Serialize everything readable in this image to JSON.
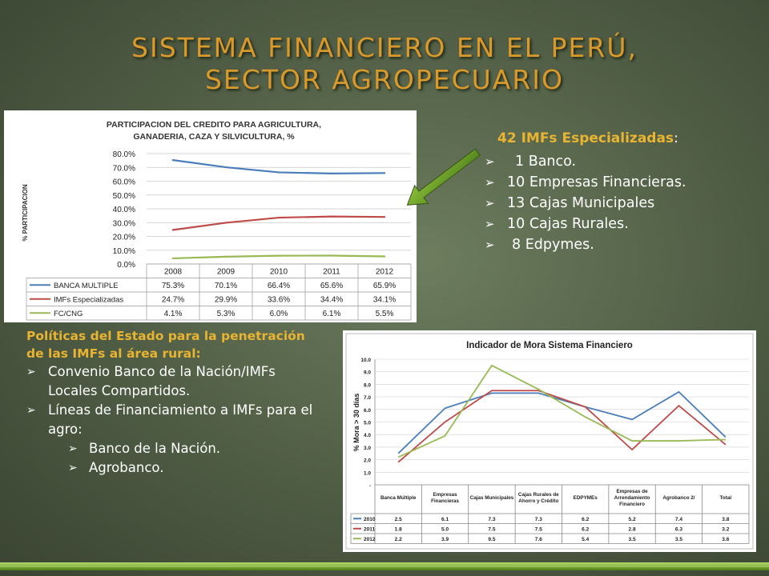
{
  "title": {
    "line1": "SISTEMA FINANCIERO EN EL PERÚ,",
    "line2": "SECTOR AGROPECUARIO"
  },
  "right_box": {
    "heading": "42 IMFs Especializadas",
    "heading_suffix": ":",
    "items": [
      "1 Banco.",
      "10 Empresas Financieras.",
      "13 Cajas Municipales",
      "10 Cajas Rurales.",
      "8 Edpymes."
    ]
  },
  "left_box": {
    "heading": "Políticas del Estado para la penetración de las IMFs al área rural:",
    "items": [
      "Convenio Banco de la Nación/IMFs Locales Compartidos.",
      "Líneas de Financiamiento a IMFs para el agro:"
    ],
    "subitems": [
      "Banco de la Nación.",
      "Agrobanco."
    ]
  },
  "colors": {
    "blue": "#4a7ebb",
    "red": "#be4b48",
    "green": "#98b954",
    "title": "#d99a2b",
    "accent": "#e8b432"
  },
  "chart_data": [
    {
      "type": "line",
      "title_line1": "PARTICIPACION DEL CREDITO PARA AGRICULTURA,",
      "title_line2": "GANADERIA, CAZA Y SILVICULTURA, %",
      "ylabel": "% PARTICIPACION",
      "categories": [
        "2008",
        "2009",
        "2010",
        "2011",
        "2012"
      ],
      "ylim": [
        0,
        80
      ],
      "yticks": [
        "0.0%",
        "10.0%",
        "20.0%",
        "30.0%",
        "40.0%",
        "50.0%",
        "60.0%",
        "70.0%",
        "80.0%"
      ],
      "series": [
        {
          "name": "BANCA MULTIPLE",
          "values": [
            75.3,
            70.1,
            66.4,
            65.6,
            65.9
          ],
          "labels": [
            "75.3%",
            "70.1%",
            "66.4%",
            "65.6%",
            "65.9%"
          ],
          "color": "#4a7ebb"
        },
        {
          "name": "IMFs Especializadas",
          "values": [
            24.7,
            29.9,
            33.6,
            34.4,
            34.1
          ],
          "labels": [
            "24.7%",
            "29.9%",
            "33.6%",
            "34.4%",
            "34.1%"
          ],
          "color": "#be4b48"
        },
        {
          "name": "FC/CNG",
          "values": [
            4.1,
            5.3,
            6.0,
            6.1,
            5.5
          ],
          "labels": [
            "4.1%",
            "5.3%",
            "6.0%",
            "6.1%",
            "5.5%"
          ],
          "color": "#98b954"
        }
      ],
      "grid": true,
      "legend": "data-table"
    },
    {
      "type": "line",
      "title": "Indicador de Mora Sistema Financiero",
      "ylabel": "% Mora > 30 días",
      "categories": [
        "Banca Múltiple",
        "Empresas Financieras",
        "Cajas Municipales",
        "Cajas Rurales de Ahorro y Crédito",
        "EDPYMEs",
        "Empresas de Arrendamiento Financiero",
        "Agrobanco 2/",
        "Total"
      ],
      "ylim": [
        0,
        10
      ],
      "yticks": [
        "1.0",
        "2.0",
        "3.0",
        "4.0",
        "5.0",
        "6.0",
        "7.0",
        "8.0",
        "9.0",
        "10.0"
      ],
      "series": [
        {
          "name": "2010",
          "values": [
            2.5,
            6.1,
            7.3,
            7.3,
            6.2,
            5.2,
            7.4,
            3.8
          ],
          "labels": [
            "2.5",
            "6.1",
            "7.3",
            "7.3",
            "6.2",
            "5.2",
            "7.4",
            "3.8"
          ],
          "color": "#4a7ebb"
        },
        {
          "name": "2011",
          "values": [
            1.8,
            5.0,
            7.5,
            7.5,
            6.2,
            2.8,
            6.3,
            3.2
          ],
          "labels": [
            "1.8",
            "5.0",
            "7.5",
            "7.5",
            "6.2",
            "2.8",
            "6.3",
            "3.2"
          ],
          "color": "#be4b48"
        },
        {
          "name": "2012",
          "values": [
            2.2,
            3.9,
            9.5,
            7.6,
            5.4,
            3.5,
            3.5,
            3.6
          ],
          "labels": [
            "2.2",
            "3.9",
            "9.5",
            "7.6",
            "5.4",
            "3.5",
            "3.5",
            "3.6"
          ],
          "color": "#98b954"
        }
      ],
      "grid": true,
      "legend": "data-table"
    }
  ]
}
